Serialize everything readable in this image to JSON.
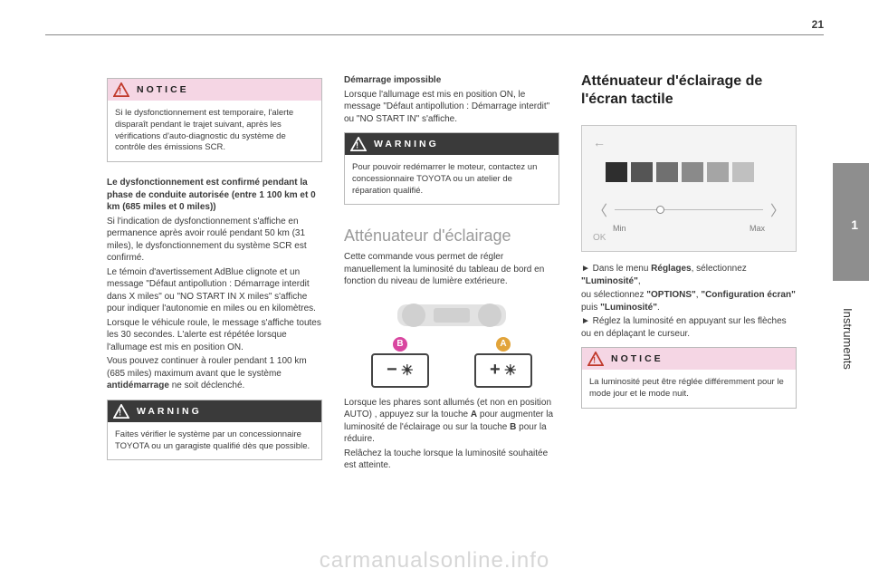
{
  "page_number": "21",
  "side_tab": {
    "chapter": "1",
    "label": "Instruments",
    "bg": "#8e8e8e"
  },
  "watermark": "carmanualsonline.info",
  "col1": {
    "notice": {
      "title": "NOTICE",
      "body": "Si le dysfonctionnement est temporaire, l'alerte disparaît pendant le trajet suivant, après les vérifications d'auto-diagnostic du système de contrôle des émissions SCR."
    },
    "bold_para": "Le dysfonctionnement est confirmé pendant la phase de conduite autorisée (entre 1 100 km et 0 km (685 miles et 0 miles))",
    "body1": "Si l'indication de dysfonctionnement s'affiche en permanence après avoir roulé pendant 50 km (31 miles), le dysfonctionnement du système SCR est confirmé.",
    "body2": "Le témoin d'avertissement AdBlue clignote et un message \"Défaut antipollution : Démarrage interdit dans X miles\" ou \"NO START IN X miles\" s'affiche pour indiquer l'autonomie en miles ou en kilomètres.",
    "body3": "Lorsque le véhicule roule, le message s'affiche toutes les 30 secondes. L'alerte est répétée lorsque l'allumage est mis en position ON.",
    "body4a": "Vous pouvez continuer à rouler pendant 1 100 km (685 miles) maximum avant que le système ",
    "body4b": "antidémarrage",
    "body4c": " ne soit déclenché.",
    "warning": {
      "title": "WARNING",
      "body": "Faites vérifier le système par un concessionnaire TOYOTA ou un garagiste qualifié dès que possible."
    }
  },
  "col2": {
    "subhead": "Démarrage impossible",
    "body1": "Lorsque l'allumage est mis en position ON, le message \"Défaut antipollution : Démarrage interdit\" ou \"NO START IN\" s'affiche.",
    "warning": {
      "title": "WARNING",
      "body": "Pour pouvoir redémarrer le moteur, contactez un concessionnaire TOYOTA ou un atelier de réparation qualifié."
    },
    "h2": "Atténuateur d'éclairage",
    "body2": "Cette commande vous permet de régler manuellement la luminosité du tableau de bord en fonction du niveau de lumière extérieure.",
    "dimmer": {
      "label_a": "A",
      "label_b": "B",
      "minus": "−",
      "plus": "+",
      "color_a": "#e2a43a",
      "color_b": "#d946a0"
    },
    "body3a": "Lorsque les phares sont allumés (et non en position AUTO) , appuyez sur la touche ",
    "body3b": "A",
    "body3c": " pour augmenter la luminosité de l'éclairage ou sur la touche ",
    "body3d": "B",
    "body3e": " pour la réduire.",
    "body4": "Relâchez la touche lorsque la luminosité souhaitée est atteinte."
  },
  "col3": {
    "h2": "Atténuateur d'éclairage de l'écran tactile",
    "touchscreen": {
      "swatches": [
        "#2e2e2e",
        "#555555",
        "#707070",
        "#8a8a8a",
        "#a5a5a5",
        "#c0c0c0"
      ],
      "min": "Min",
      "max": "Max",
      "ok": "OK",
      "thumb_pct": 28
    },
    "line1a": "► Dans le menu ",
    "line1b": "Réglages",
    "line1c": ", sélectionnez ",
    "line1d": "\"Luminosité\"",
    "line1e": ",",
    "line2a": "ou sélectionnez ",
    "line2b": "\"OPTIONS\"",
    "line2c": ", ",
    "line2d": "\"Configuration écran\"",
    "line2e": " puis ",
    "line2f": "\"Luminosité\"",
    "line2g": ".",
    "line3": "► Réglez la luminosité en appuyant sur les flèches ou en déplaçant le curseur.",
    "notice": {
      "title": "NOTICE",
      "body": "La luminosité peut être réglée différemment pour le mode jour et le mode nuit."
    }
  }
}
